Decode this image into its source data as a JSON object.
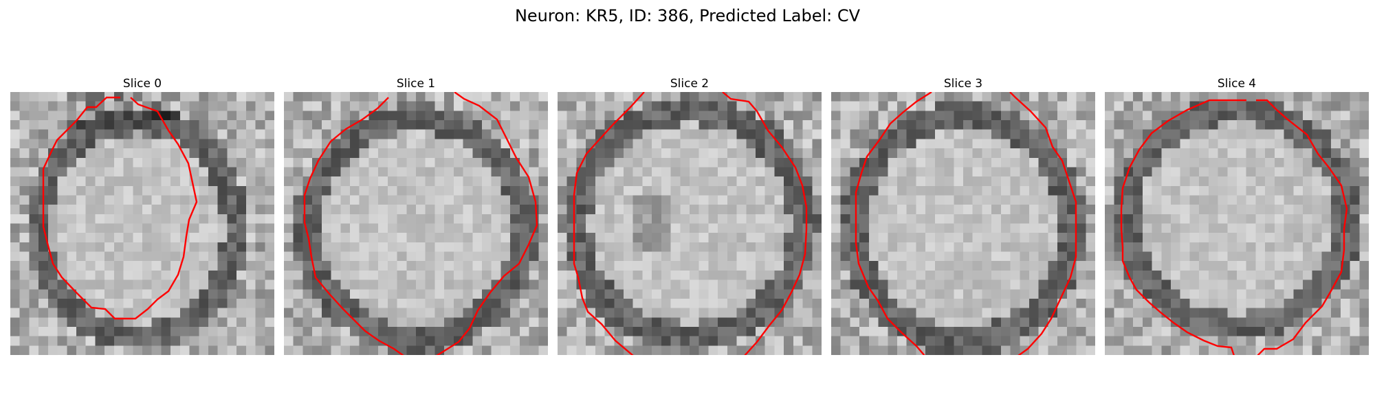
{
  "figure": {
    "title": "Neuron: KR5, ID: 386, Predicted Label: CV"
  },
  "slices": [
    {
      "label": "Slice 0"
    },
    {
      "label": "Slice 1"
    },
    {
      "label": "Slice 2"
    },
    {
      "label": "Slice 3"
    },
    {
      "label": "Slice 4"
    }
  ],
  "colors": {
    "contour": "#ff0000",
    "colormap": "gray"
  }
}
